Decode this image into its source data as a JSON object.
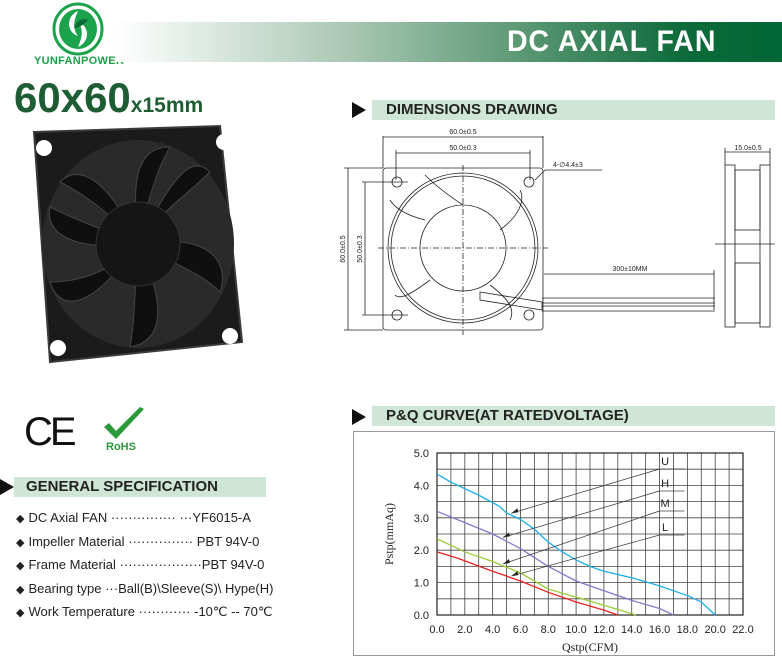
{
  "brand": {
    "name": "YUNFANPOWER",
    "color": "#1aa34a"
  },
  "header": {
    "title": "DC AXIAL FAN",
    "accent": "#006633"
  },
  "product": {
    "size_main": "60x60",
    "size_suffix": "x15mm"
  },
  "certifications": {
    "ce": "CE",
    "rohs": "RoHS"
  },
  "sections": {
    "dimensions": "DIMENSIONS DRAWING",
    "general": "GENERAL SPECIFICATION",
    "pq": "P&Q CURVE(AT RATEDVOLTAGE)"
  },
  "dimensions": {
    "width_outer": "60.0±0.5",
    "width_inner": "50.0±0.3",
    "height_outer": "60.0±0.5",
    "height_inner": "50.0±0.3",
    "holes": "4-∅4.4±3",
    "lead_length": "300±10MM",
    "thickness": "15.0±0.5"
  },
  "specs": [
    {
      "label": "DC Axial FAN",
      "dots": "··············· ···",
      "value": "YF6015-A"
    },
    {
      "label": "Impeller Material",
      "dots": "···············",
      "value": " PBT 94V-0"
    },
    {
      "label": "Frame Material",
      "dots": "···················",
      "value": "PBT 94V-0"
    },
    {
      "label": "Bearing type",
      "dots": "···",
      "value": "Ball(B)\\Sleeve(S)\\ Hype(H)"
    },
    {
      "label": "Work Temperature",
      "dots": "············",
      "value": " -10℃ -- 70℃"
    }
  ],
  "chart_data": {
    "type": "line",
    "xlabel": "Qstp(CFM)",
    "ylabel": "Pstp(mmAq)",
    "xlim": [
      0,
      22
    ],
    "ylim": [
      0,
      5
    ],
    "xticks": [
      "0.0",
      "2.0",
      "4.0",
      "6.0",
      "8.0",
      "10.0",
      "12.0",
      "14.0",
      "16.0",
      "18.0",
      "20.0",
      "22.0"
    ],
    "yticks": [
      "0.0",
      "1.0",
      "2.0",
      "3.0",
      "4.0",
      "5.0"
    ],
    "grid": true,
    "series": [
      {
        "name": "U",
        "color": "#1ab0e8",
        "points": [
          [
            0,
            4.35
          ],
          [
            1,
            4.1
          ],
          [
            3,
            3.7
          ],
          [
            4.5,
            3.35
          ],
          [
            5,
            3.15
          ],
          [
            6,
            2.95
          ],
          [
            7,
            2.65
          ],
          [
            8,
            2.25
          ],
          [
            9,
            1.95
          ],
          [
            10,
            1.7
          ],
          [
            11,
            1.5
          ],
          [
            12,
            1.35
          ],
          [
            14,
            1.15
          ],
          [
            16,
            0.9
          ],
          [
            18,
            0.6
          ],
          [
            19,
            0.4
          ],
          [
            20,
            0
          ]
        ]
      },
      {
        "name": "H",
        "color": "#8877cc",
        "points": [
          [
            0,
            3.2
          ],
          [
            2,
            2.85
          ],
          [
            4,
            2.5
          ],
          [
            6,
            2.05
          ],
          [
            8,
            1.5
          ],
          [
            10,
            1.05
          ],
          [
            12,
            0.75
          ],
          [
            14,
            0.45
          ],
          [
            16,
            0.2
          ],
          [
            17,
            0
          ]
        ]
      },
      {
        "name": "M",
        "color": "#99cc33",
        "points": [
          [
            0,
            2.35
          ],
          [
            2,
            1.95
          ],
          [
            4,
            1.65
          ],
          [
            6,
            1.3
          ],
          [
            8,
            0.8
          ],
          [
            10,
            0.55
          ],
          [
            12,
            0.3
          ],
          [
            14.3,
            0
          ]
        ]
      },
      {
        "name": "L",
        "color": "#ee2222",
        "points": [
          [
            0,
            1.95
          ],
          [
            1.5,
            1.75
          ],
          [
            4,
            1.35
          ],
          [
            6,
            1.05
          ],
          [
            8,
            0.7
          ],
          [
            10,
            0.4
          ],
          [
            12,
            0.15
          ],
          [
            13,
            0
          ]
        ]
      }
    ]
  }
}
